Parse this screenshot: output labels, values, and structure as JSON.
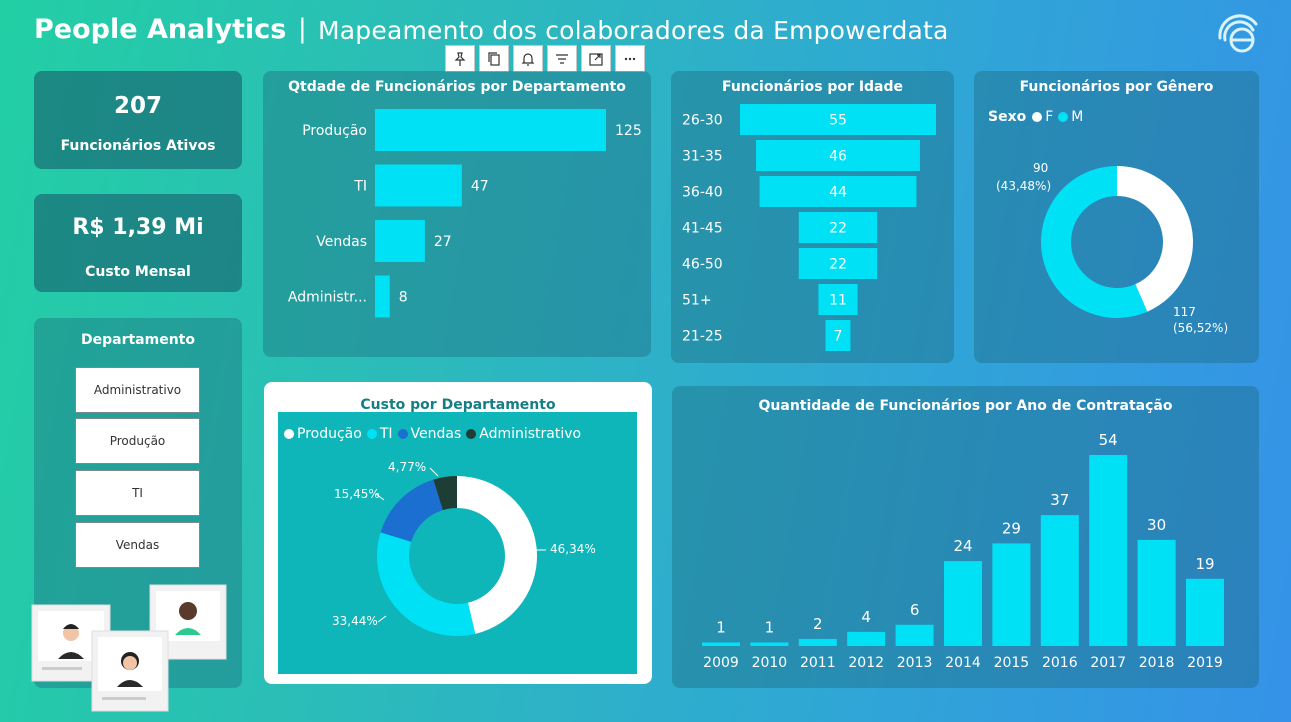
{
  "header": {
    "title": "People Analytics",
    "separator": "|",
    "subtitle": "Mapeamento dos colaboradores da Empowerdata",
    "logo_icon": "empowerdata-logo-icon"
  },
  "toolbar": {
    "icons": [
      "pin-icon",
      "copy-icon",
      "bell-icon",
      "filter-icon",
      "expand-icon",
      "more-icon"
    ]
  },
  "kpis": {
    "employees": {
      "value": "207",
      "label": "Funcionários Ativos"
    },
    "cost": {
      "value": "R$ 1,39 Mi",
      "label": "Custo Mensal"
    }
  },
  "slicer": {
    "title": "Departamento",
    "items": [
      "Administrativo",
      "Produção",
      "TI",
      "Vendas"
    ]
  },
  "colors": {
    "bar": "#00e1f5",
    "white": "#ffffff",
    "blue": "#1a6fd0",
    "dark": "#1e3d35",
    "card": "#0fb6b9"
  },
  "chart_data": [
    {
      "id": "dept",
      "type": "bar",
      "orientation": "horizontal",
      "title": "Qtdade de Funcionários por Departamento",
      "categories": [
        "Produção",
        "TI",
        "Vendas",
        "Administr..."
      ],
      "values": [
        125,
        47,
        27,
        8
      ]
    },
    {
      "id": "age",
      "type": "bar",
      "orientation": "funnel",
      "title": "Funcionários por Idade",
      "categories": [
        "26-30",
        "31-35",
        "36-40",
        "41-45",
        "46-50",
        "51+",
        "21-25"
      ],
      "values": [
        55,
        46,
        44,
        22,
        22,
        11,
        7
      ]
    },
    {
      "id": "gender",
      "type": "pie",
      "title": "Funcionários por Gênero",
      "legend_title": "Sexo",
      "categories": [
        "F",
        "M"
      ],
      "values": [
        90,
        117
      ],
      "percent_labels": [
        "(43,48%)",
        "(56,52%)"
      ],
      "colors": [
        "#ffffff",
        "#00e1f5"
      ]
    },
    {
      "id": "cost",
      "type": "pie",
      "title": "Custo por Departamento",
      "categories": [
        "Produção",
        "TI",
        "Vendas",
        "Administrativo"
      ],
      "values": [
        46.34,
        33.44,
        15.45,
        4.77
      ],
      "labels": [
        "46,34%",
        "33,44%",
        "15,45%",
        "4,77%"
      ],
      "colors": [
        "#ffffff",
        "#00e1f5",
        "#1a6fd0",
        "#1e3d35"
      ],
      "legend": "top"
    },
    {
      "id": "hire",
      "type": "bar",
      "title": "Quantidade de Funcionários por Ano de Contratação",
      "categories": [
        "2009",
        "2010",
        "2011",
        "2012",
        "2013",
        "2014",
        "2015",
        "2016",
        "2017",
        "2018",
        "2019"
      ],
      "values": [
        1,
        1,
        2,
        4,
        6,
        24,
        29,
        37,
        54,
        30,
        19
      ]
    }
  ]
}
